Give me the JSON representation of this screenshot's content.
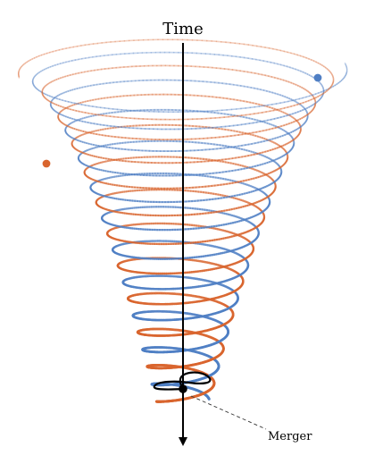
{
  "diagram": {
    "axis_label": "Time",
    "merger_label": "Merger",
    "objects": [
      {
        "name": "blue-body",
        "color": "#4f7fc4"
      },
      {
        "name": "orange-body",
        "color": "#d9652e"
      }
    ],
    "merger_color": "#000000"
  }
}
